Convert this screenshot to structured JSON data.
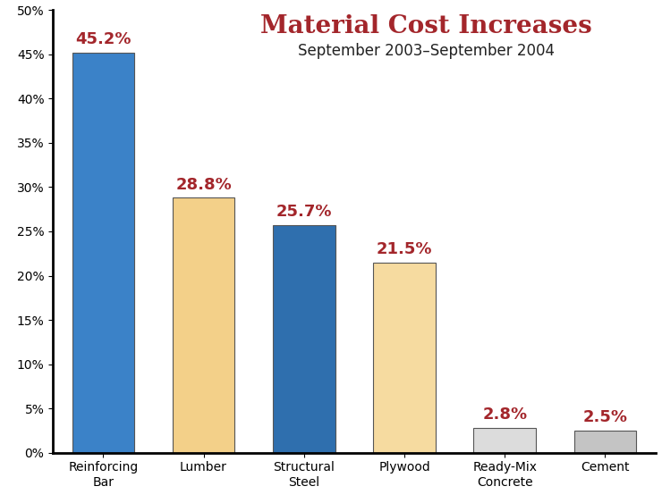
{
  "chart_data": {
    "type": "bar",
    "title": "Material Cost Increases",
    "subtitle": "September 2003–September 2004",
    "categories": [
      "Reinforcing\nBar",
      "Lumber",
      "Structural\nSteel",
      "Plywood",
      "Ready-Mix\nConcrete",
      "Cement"
    ],
    "values": [
      45.2,
      28.8,
      25.7,
      21.5,
      2.8,
      2.5
    ],
    "value_labels": [
      "45.2%",
      "28.8%",
      "25.7%",
      "21.5%",
      "2.8%",
      "2.5%"
    ],
    "colors": [
      "#3b82c8",
      "#f3d089",
      "#2f6fae",
      "#f6dba0",
      "#dcdcdc",
      "#c4c4c4"
    ],
    "ylim": [
      0,
      50
    ],
    "yticks": [
      {
        "value": 0,
        "label": "0%"
      },
      {
        "value": 5,
        "label": "5%"
      },
      {
        "value": 10,
        "label": "10%"
      },
      {
        "value": 15,
        "label": "15%"
      },
      {
        "value": 20,
        "label": "20%"
      },
      {
        "value": 25,
        "label": "25%"
      },
      {
        "value": 30,
        "label": "30%"
      },
      {
        "value": 35,
        "label": "35%"
      },
      {
        "value": 40,
        "label": "40%"
      },
      {
        "value": 45,
        "label": "45%"
      },
      {
        "value": 50,
        "label": "50%"
      }
    ],
    "grid": false,
    "data_labels": true
  }
}
